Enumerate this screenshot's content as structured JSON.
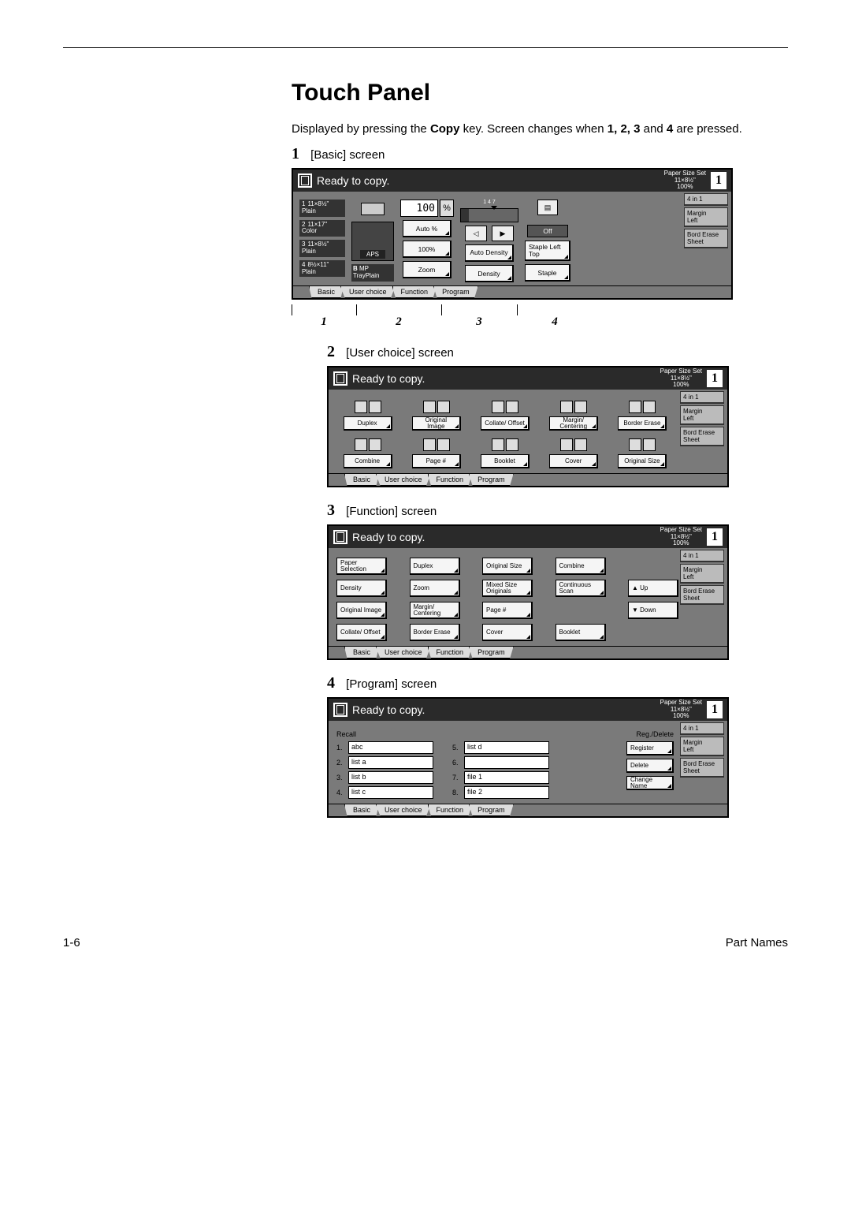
{
  "page": {
    "title": "Touch Panel",
    "intro_pre": "Displayed by pressing the ",
    "intro_bold1": "Copy",
    "intro_mid": " key. Screen changes when ",
    "intro_bold_nums": "1, 2, 3",
    "intro_mid2": " and ",
    "intro_bold4": "4",
    "intro_end": " are pressed.",
    "footer_left": "1-6",
    "footer_right": "Part Names"
  },
  "labels": {
    "l1_num": "1",
    "l1_txt": "[Basic] screen",
    "l2_num": "2",
    "l2_txt": "[User choice] screen",
    "l3_num": "3",
    "l3_txt": "[Function] screen",
    "l4_num": "4",
    "l4_txt": "[Program] screen"
  },
  "common": {
    "ready": "Ready to copy.",
    "psize_line1": "Paper Size    Set",
    "psize_line2": "11×8½\"",
    "psize_line3": "100%",
    "pagebig": "1",
    "tab_basic": "Basic",
    "tab_user": "User choice",
    "tab_func": "Function",
    "tab_prog": "Program",
    "side_4in1": "4 in 1",
    "side_margin": "Margin",
    "side_left": "Left",
    "side_bord": "Bord Erase",
    "side_sheet": "Sheet"
  },
  "panel1": {
    "slots": [
      {
        "n": "1",
        "size": "11×8½\"",
        "type": "Plain"
      },
      {
        "n": "2",
        "size": "11×17\"",
        "type": "Color"
      },
      {
        "n": "3",
        "size": "11×8½\"",
        "type": "Plain"
      },
      {
        "n": "4",
        "size": "8½×11\"",
        "type": "Plain"
      }
    ],
    "aps": "APS",
    "mp_b": "B",
    "mp_tray": "MP Tray",
    "mp_plain": "Plain",
    "zoom_val": "100",
    "pct": "%",
    "autopct": "Auto %",
    "z100": "100%",
    "zoom": "Zoom",
    "gauge_nums": "1      4      7",
    "autoden": "Auto Density",
    "density": "Density",
    "off": "Off",
    "staple_lt": "Staple Left Top",
    "staple": "Staple",
    "pointers": [
      "1",
      "2",
      "3",
      "4"
    ]
  },
  "panel2": {
    "cells": [
      "Duplex",
      "Original Image",
      "Collate/ Offset",
      "Margin/ Centering",
      "Border Erase",
      "Combine",
      "Page #",
      "Booklet",
      "Cover",
      "Original Size"
    ]
  },
  "panel3": {
    "cells": [
      "Paper Selection",
      "Duplex",
      "Original Size",
      "Combine",
      "",
      "Density",
      "Zoom",
      "Mixed Size Originals",
      "Continuous Scan",
      "Up",
      "Original Image",
      "Margin/ Centering",
      "Page #",
      "",
      "Down",
      "Collate/ Offset",
      "Border Erase",
      "Cover",
      "Booklet",
      ""
    ],
    "up": "Up",
    "down": "Down"
  },
  "panel4": {
    "recall": "Recall",
    "regdel": "Reg./Delete",
    "left": [
      {
        "n": "1.",
        "v": "abc"
      },
      {
        "n": "2.",
        "v": "list a"
      },
      {
        "n": "3.",
        "v": "list b"
      },
      {
        "n": "4.",
        "v": "list c"
      }
    ],
    "right": [
      {
        "n": "5.",
        "v": "list d"
      },
      {
        "n": "6.",
        "v": ""
      },
      {
        "n": "7.",
        "v": "file 1"
      },
      {
        "n": "8.",
        "v": "file 2"
      }
    ],
    "actions": [
      "Register",
      "Delete",
      "Change Name"
    ]
  }
}
